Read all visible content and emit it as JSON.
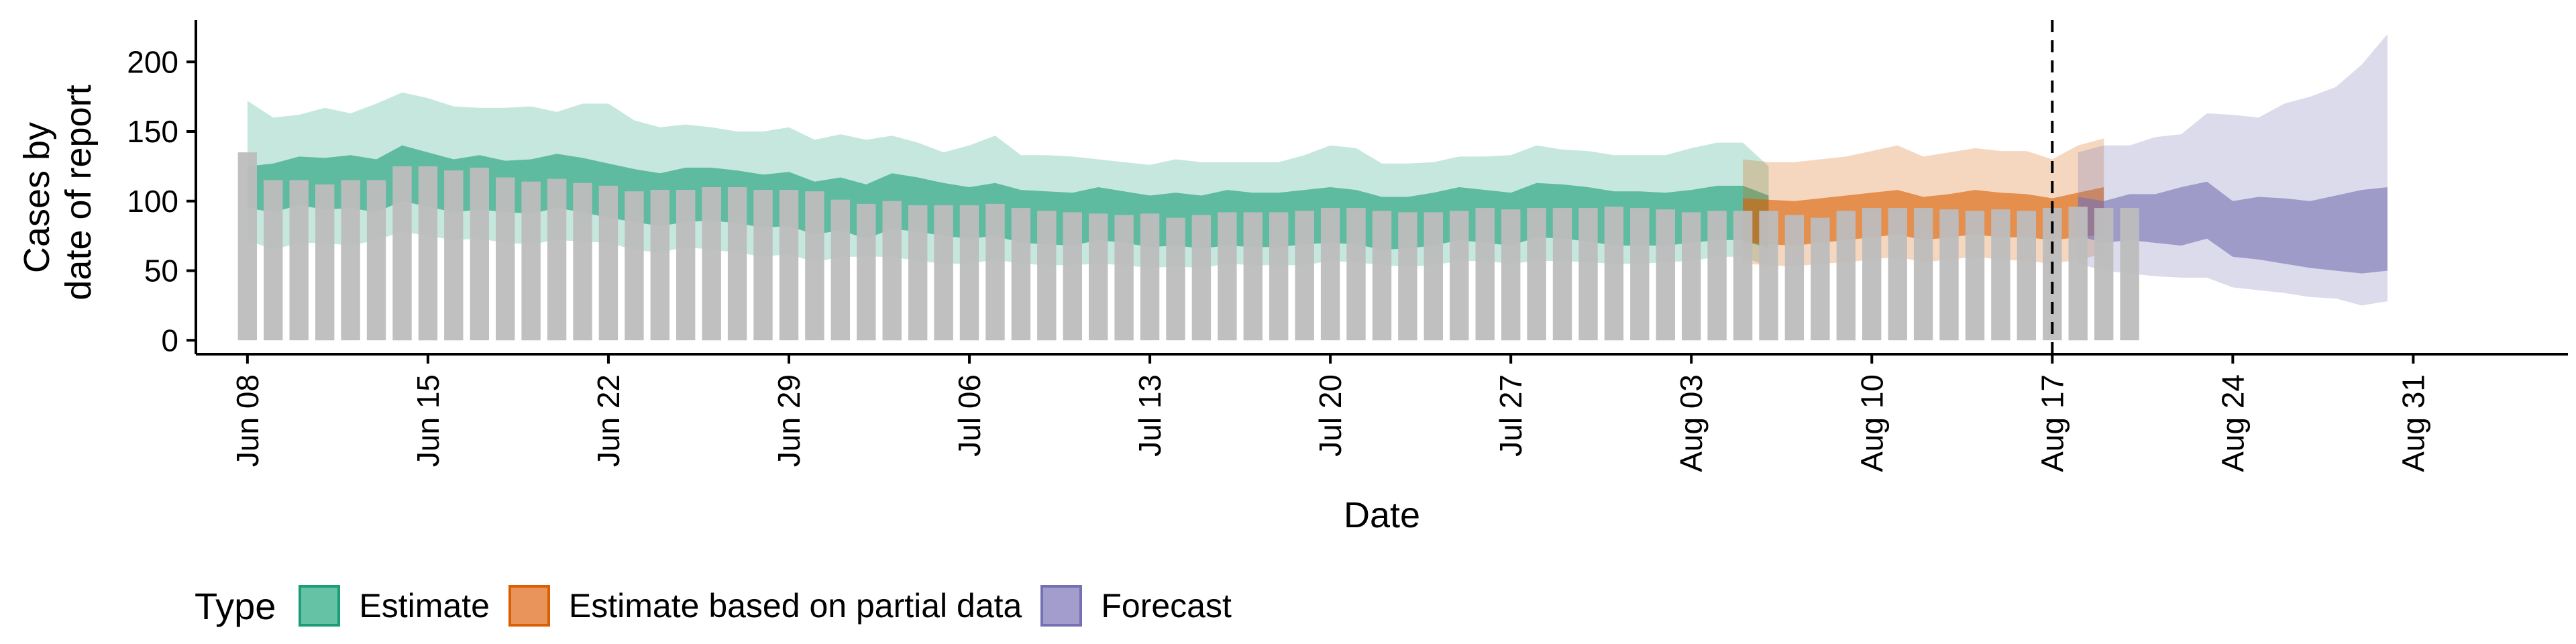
{
  "chart_data": {
    "type": "area",
    "xlabel": "Date",
    "ylabel": [
      "Cases by",
      "date of report"
    ],
    "xlim": [
      "2020-06-06",
      "2020-09-06"
    ],
    "ylim": [
      -10,
      230
    ],
    "yticks": [
      0,
      50,
      100,
      150,
      200
    ],
    "xticks": [
      "2020-06-08",
      "2020-06-15",
      "2020-06-22",
      "2020-06-29",
      "2020-07-06",
      "2020-07-13",
      "2020-07-20",
      "2020-07-27",
      "2020-08-03",
      "2020-08-10",
      "2020-08-17",
      "2020-08-24",
      "2020-08-31"
    ],
    "xtick_labels": [
      "Jun 08",
      "Jun 15",
      "Jun 22",
      "Jun 29",
      "Jul 06",
      "Jul 13",
      "Jul 20",
      "Jul 27",
      "Aug 03",
      "Aug 10",
      "Aug 17",
      "Aug 24",
      "Aug 31"
    ],
    "vline_date": "2020-08-17",
    "grid": false,
    "bar_color": "#bdbdbd",
    "reported_cases": {
      "start_date": "2020-06-08",
      "values": [
        135,
        115,
        115,
        112,
        115,
        115,
        125,
        125,
        122,
        124,
        117,
        114,
        116,
        113,
        111,
        107,
        108,
        108,
        110,
        110,
        108,
        108,
        107,
        101,
        98,
        100,
        97,
        97,
        97,
        98,
        95,
        93,
        92,
        91,
        90,
        91,
        88,
        90,
        92,
        92,
        92,
        93,
        95,
        95,
        93,
        92,
        92,
        93,
        95,
        94,
        95,
        95,
        95,
        96,
        95,
        94,
        92,
        93,
        93,
        93,
        90,
        88,
        93,
        95,
        95,
        95,
        94,
        93,
        94,
        93,
        95,
        96,
        95,
        95
      ]
    },
    "legend": {
      "title": "Type",
      "position": "bottom",
      "items": [
        {
          "label": "Estimate",
          "fill": "#66c2a5",
          "stroke": "#1b9e77"
        },
        {
          "label": "Estimate based on partial data",
          "fill": "#e8945a",
          "stroke": "#d95f02"
        },
        {
          "label": "Forecast",
          "fill": "#a29dcc",
          "stroke": "#7570b3"
        }
      ]
    },
    "series": [
      {
        "name": "Estimate",
        "outer_color": "#1b9e77",
        "inner_color": "#1b9e77",
        "outer_opacity": 0.25,
        "inner_opacity": 0.6,
        "start_date": "2020-06-08",
        "outer_upper": [
          172,
          160,
          162,
          167,
          163,
          170,
          178,
          174,
          168,
          167,
          167,
          168,
          164,
          170,
          170,
          158,
          153,
          155,
          153,
          150,
          150,
          153,
          144,
          148,
          144,
          147,
          142,
          135,
          140,
          147,
          133,
          133,
          132,
          130,
          128,
          126,
          130,
          128,
          128,
          128,
          128,
          133,
          140,
          138,
          127,
          127,
          128,
          132,
          132,
          133,
          140,
          137,
          136,
          133,
          133,
          133,
          138,
          142,
          142,
          125
        ],
        "inner_upper": [
          125,
          127,
          132,
          131,
          133,
          130,
          140,
          135,
          130,
          133,
          129,
          130,
          134,
          131,
          127,
          123,
          120,
          124,
          124,
          122,
          119,
          121,
          114,
          117,
          112,
          120,
          117,
          113,
          110,
          113,
          108,
          107,
          106,
          110,
          107,
          104,
          106,
          104,
          108,
          106,
          106,
          108,
          110,
          108,
          103,
          103,
          106,
          110,
          108,
          106,
          113,
          112,
          110,
          107,
          107,
          106,
          108,
          111,
          111,
          104
        ],
        "inner_lower": [
          95,
          92,
          97,
          94,
          95,
          92,
          100,
          96,
          92,
          94,
          92,
          91,
          95,
          92,
          88,
          85,
          82,
          85,
          86,
          84,
          81,
          82,
          76,
          79,
          73,
          80,
          78,
          75,
          73,
          75,
          70,
          69,
          68,
          72,
          70,
          67,
          68,
          66,
          68,
          67,
          67,
          69,
          70,
          69,
          65,
          66,
          68,
          72,
          70,
          68,
          74,
          73,
          71,
          68,
          68,
          68,
          70,
          72,
          72,
          66
        ],
        "outer_lower": [
          72,
          65,
          70,
          70,
          68,
          72,
          78,
          75,
          72,
          73,
          70,
          69,
          72,
          71,
          70,
          65,
          63,
          67,
          65,
          63,
          60,
          62,
          56,
          60,
          60,
          60,
          57,
          55,
          55,
          58,
          55,
          54,
          54,
          55,
          54,
          52,
          53,
          52,
          55,
          54,
          54,
          54,
          57,
          56,
          54,
          53,
          54,
          57,
          57,
          55,
          57,
          57,
          56,
          55,
          55,
          56,
          57,
          60,
          60,
          53
        ]
      },
      {
        "name": "Estimate based on partial data",
        "outer_color": "#d95f02",
        "inner_color": "#d95f02",
        "outer_opacity": 0.25,
        "inner_opacity": 0.6,
        "start_date": "2020-08-05",
        "outer_upper": [
          130,
          128,
          128,
          130,
          132,
          136,
          140,
          132,
          135,
          138,
          136,
          136,
          130,
          140,
          145
        ],
        "inner_upper": [
          102,
          101,
          100,
          102,
          104,
          106,
          108,
          103,
          105,
          108,
          106,
          105,
          102,
          106,
          110
        ],
        "inner_lower": [
          70,
          69,
          68,
          70,
          72,
          74,
          76,
          72,
          74,
          76,
          74,
          74,
          72,
          74,
          76
        ],
        "outer_lower": [
          55,
          54,
          53,
          55,
          56,
          58,
          60,
          56,
          58,
          60,
          58,
          57,
          55,
          58,
          62
        ]
      },
      {
        "name": "Forecast",
        "outer_color": "#7570b3",
        "inner_color": "#7570b3",
        "outer_opacity": 0.25,
        "inner_opacity": 0.6,
        "start_date": "2020-08-18",
        "outer_upper": [
          135,
          140,
          140,
          146,
          148,
          163,
          162,
          160,
          170,
          175,
          182,
          198,
          220
        ],
        "inner_upper": [
          103,
          100,
          105,
          105,
          110,
          114,
          100,
          103,
          102,
          100,
          104,
          108,
          110
        ],
        "inner_lower": [
          75,
          70,
          72,
          70,
          68,
          73,
          60,
          58,
          55,
          52,
          50,
          48,
          50
        ],
        "outer_lower": [
          55,
          50,
          48,
          46,
          45,
          45,
          38,
          36,
          34,
          31,
          30,
          25,
          28
        ]
      }
    ]
  }
}
